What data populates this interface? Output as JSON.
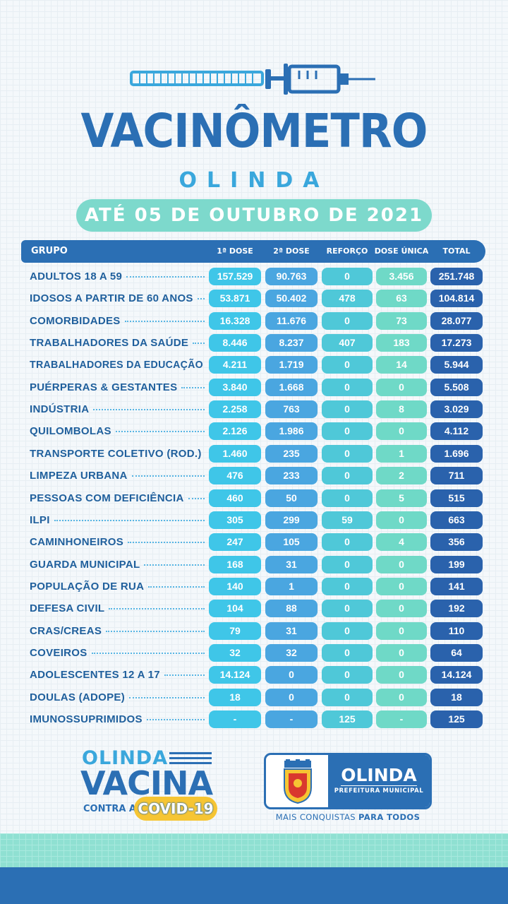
{
  "header": {
    "title": "VACINÔMETRO",
    "subtitle": "OLINDA",
    "date": "ATÉ 05 DE OUTUBRO DE 2021"
  },
  "table": {
    "columns": [
      "GRUPO",
      "1ª DOSE",
      "2ª DOSE",
      "REFORÇO",
      "DOSE ÚNICA",
      "TOTAL"
    ],
    "rows": [
      {
        "group": "ADULTOS 18 A 59",
        "d1": "157.529",
        "d2": "90.763",
        "reforco": "0",
        "unica": "3.456",
        "total": "251.748"
      },
      {
        "group": "IDOSOS A PARTIR DE 60 ANOS",
        "d1": "53.871",
        "d2": "50.402",
        "reforco": "478",
        "unica": "63",
        "total": "104.814"
      },
      {
        "group": "COMORBIDADES",
        "d1": "16.328",
        "d2": "11.676",
        "reforco": "0",
        "unica": "73",
        "total": "28.077"
      },
      {
        "group": "TRABALHADORES DA SAÚDE",
        "d1": "8.446",
        "d2": "8.237",
        "reforco": "407",
        "unica": "183",
        "total": "17.273"
      },
      {
        "group": "TRABALHADORES DA EDUCAÇÃO",
        "d1": "4.211",
        "d2": "1.719",
        "reforco": "0",
        "unica": "14",
        "total": "5.944"
      },
      {
        "group": "PUÉRPERAS & GESTANTES",
        "d1": "3.840",
        "d2": "1.668",
        "reforco": "0",
        "unica": "0",
        "total": "5.508"
      },
      {
        "group": "INDÚSTRIA",
        "d1": "2.258",
        "d2": "763",
        "reforco": "0",
        "unica": "8",
        "total": "3.029"
      },
      {
        "group": "QUILOMBOLAS",
        "d1": "2.126",
        "d2": "1.986",
        "reforco": "0",
        "unica": "0",
        "total": "4.112"
      },
      {
        "group": "TRANSPORTE COLETIVO (ROD.)",
        "d1": "1.460",
        "d2": "235",
        "reforco": "0",
        "unica": "1",
        "total": "1.696"
      },
      {
        "group": "LIMPEZA URBANA",
        "d1": "476",
        "d2": "233",
        "reforco": "0",
        "unica": "2",
        "total": "711"
      },
      {
        "group": "PESSOAS COM DEFICIÊNCIA",
        "d1": "460",
        "d2": "50",
        "reforco": "0",
        "unica": "5",
        "total": "515"
      },
      {
        "group": "ILPI",
        "d1": "305",
        "d2": "299",
        "reforco": "59",
        "unica": "0",
        "total": "663"
      },
      {
        "group": "CAMINHONEIROS",
        "d1": "247",
        "d2": "105",
        "reforco": "0",
        "unica": "4",
        "total": "356"
      },
      {
        "group": "GUARDA MUNICIPAL",
        "d1": "168",
        "d2": "31",
        "reforco": "0",
        "unica": "0",
        "total": "199"
      },
      {
        "group": "POPULAÇÃO DE RUA",
        "d1": "140",
        "d2": "1",
        "reforco": "0",
        "unica": "0",
        "total": "141"
      },
      {
        "group": "DEFESA CIVIL",
        "d1": "104",
        "d2": "88",
        "reforco": "0",
        "unica": "0",
        "total": "192"
      },
      {
        "group": "CRAS/CREAS",
        "d1": "79",
        "d2": "31",
        "reforco": "0",
        "unica": "0",
        "total": "110"
      },
      {
        "group": "COVEIROS",
        "d1": "32",
        "d2": "32",
        "reforco": "0",
        "unica": "0",
        "total": "64"
      },
      {
        "group": "ADOLESCENTES 12 A 17",
        "d1": "14.124",
        "d2": "0",
        "reforco": "0",
        "unica": "0",
        "total": "14.124"
      },
      {
        "group": "DOULAS (ADOPE)",
        "d1": "18",
        "d2": "0",
        "reforco": "0",
        "unica": "0",
        "total": "18"
      },
      {
        "group": "IMUNOSSUPRIMIDOS",
        "d1": "-",
        "d2": "-",
        "reforco": "125",
        "unica": "-",
        "total": "125"
      }
    ]
  },
  "footer": {
    "campaign_city": "OLINDA",
    "campaign_word": "VACINA",
    "campaign_contra": "CONTRA A",
    "campaign_covid": "COVID-19",
    "logo_name": "OLINDA",
    "logo_sub": "PREFEITURA MUNICIPAL",
    "tagline_a": "MAIS CONQUISTAS",
    "tagline_b": "PARA TODOS"
  },
  "colors": {
    "primary_blue": "#2b6fb4",
    "light_blue": "#3aa7dc",
    "teal": "#7dd9cc",
    "yellow": "#f6c533"
  }
}
